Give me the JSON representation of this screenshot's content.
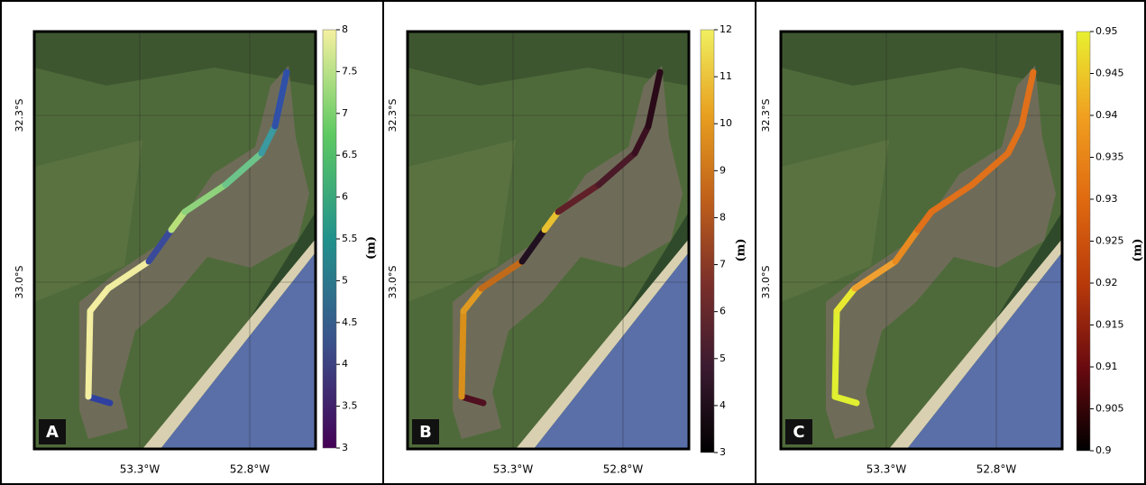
{
  "panels": [
    {
      "label": "A",
      "x_ticks": [
        "53.3°W",
        "52.8°W"
      ],
      "y_ticks": [
        "32.3°S",
        "33.0°S"
      ],
      "colorbar": {
        "unit": "(m)",
        "lim": [
          3,
          8
        ],
        "ticks": [
          3,
          3.5,
          4,
          4.5,
          5,
          5.5,
          6,
          6.5,
          7,
          7.5,
          8
        ],
        "colors": [
          "#440154",
          "#3b528b",
          "#21918c",
          "#5ec962",
          "#f5f0a0"
        ]
      },
      "track_colors": [
        "#3040a0",
        "#f3eea0",
        "#f3eea0",
        "#f0eda0",
        "#3a4a9a",
        "#b8e07a",
        "#8fd27c",
        "#6cc48a",
        "#3a9aa0",
        "#3050a8"
      ]
    },
    {
      "label": "B",
      "x_ticks": [
        "53.3°W",
        "52.8°W"
      ],
      "y_ticks": [
        "32.3°S",
        "33.0°S"
      ],
      "colorbar": {
        "unit": "(m)",
        "lim": [
          3,
          12
        ],
        "ticks": [
          3,
          4,
          5,
          6,
          7,
          8,
          9,
          10,
          11,
          12
        ],
        "colors": [
          "#000000",
          "#3a1a30",
          "#7a2f2a",
          "#c0601a",
          "#e8a020",
          "#f0f060"
        ]
      },
      "track_colors": [
        "#501020",
        "#d8901a",
        "#e09a22",
        "#c06a1a",
        "#201020",
        "#e8c030",
        "#602028",
        "#4a1a28",
        "#3a1020",
        "#2a0a18"
      ]
    },
    {
      "label": "C",
      "x_ticks": [
        "53.3°W",
        "52.8°W"
      ],
      "y_ticks": [
        "32.3°S",
        "33.0°S"
      ],
      "colorbar": {
        "unit": "(m)",
        "lim": [
          0.9,
          0.95
        ],
        "ticks": [
          0.9,
          0.905,
          0.91,
          0.915,
          0.92,
          0.925,
          0.93,
          0.935,
          0.94,
          0.945,
          0.95
        ],
        "colors": [
          "#000000",
          "#6a0a10",
          "#b83a0a",
          "#e06a10",
          "#f0a020",
          "#e8f030"
        ]
      },
      "track_colors": [
        "#e0f030",
        "#e0f030",
        "#e8e830",
        "#f0a030",
        "#e88a20",
        "#e0701a",
        "#e0701a",
        "#e0701a",
        "#e0701a",
        "#e0701a"
      ]
    }
  ]
}
